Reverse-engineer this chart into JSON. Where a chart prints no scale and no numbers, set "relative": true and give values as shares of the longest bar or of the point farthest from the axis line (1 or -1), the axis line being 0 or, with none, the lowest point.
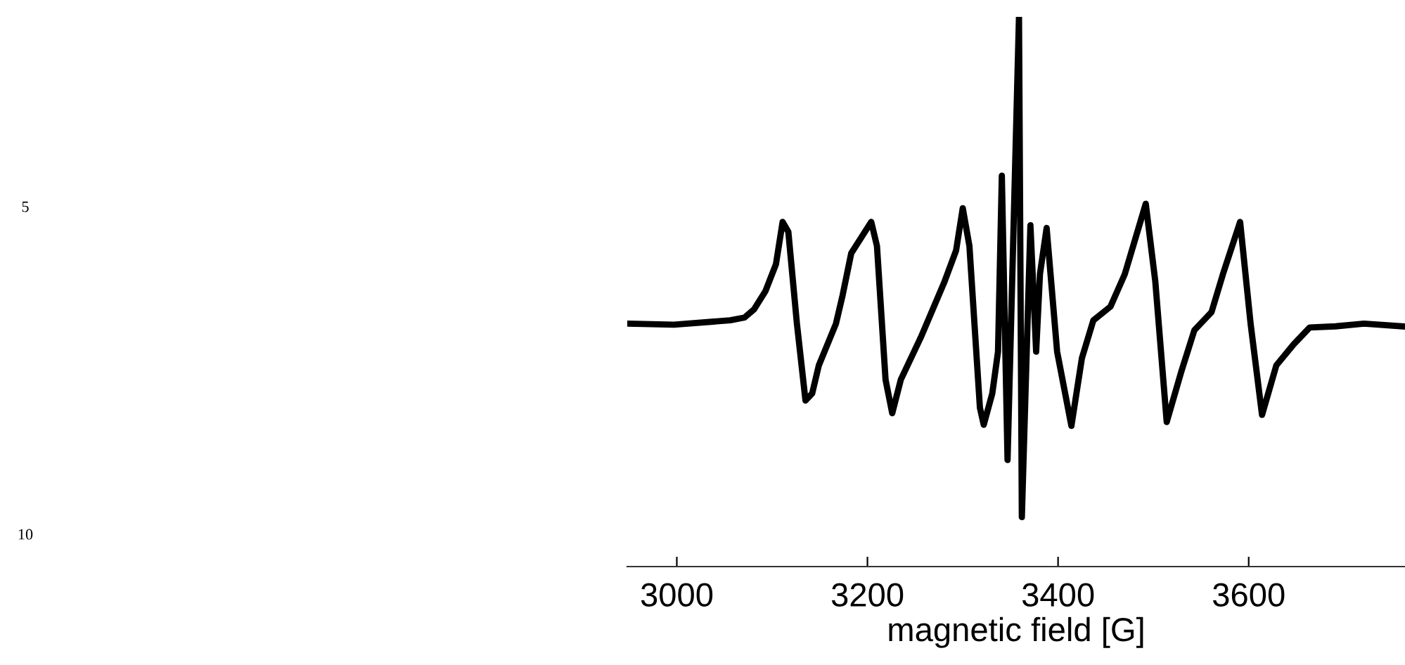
{
  "chart_data": {
    "type": "line",
    "relative": true,
    "xlabel": "magnetic field [G]",
    "xlim": [
      2948,
      3764
    ],
    "xticks": [
      3000,
      3200,
      3400,
      3600
    ],
    "tick_labels": "x",
    "grid": false,
    "legend": false,
    "annotations": [
      "5",
      "10"
    ],
    "series": [
      {
        "color": "#000000",
        "x": [
          2949,
          2997,
          3056,
          3071,
          3081,
          3093,
          3104,
          3111,
          3117,
          3126,
          3135,
          3142,
          3149,
          3167,
          3174,
          3183,
          3204,
          3210,
          3219,
          3226,
          3235,
          3256,
          3281,
          3293,
          3300,
          3307,
          3318,
          3322,
          3331,
          3337,
          3341,
          3347,
          3359,
          3362,
          3371,
          3377,
          3381,
          3388,
          3399,
          3414,
          3425,
          3437,
          3455,
          3470,
          3492,
          3502,
          3514,
          3529,
          3543,
          3561,
          3573,
          3591,
          3602,
          3614,
          3629,
          3647,
          3664,
          3691,
          3721,
          3762
        ],
        "values": [
          0.442,
          0.44,
          0.448,
          0.453,
          0.468,
          0.501,
          0.55,
          0.627,
          0.609,
          0.442,
          0.302,
          0.315,
          0.366,
          0.442,
          0.494,
          0.57,
          0.627,
          0.583,
          0.34,
          0.279,
          0.34,
          0.417,
          0.519,
          0.575,
          0.652,
          0.583,
          0.289,
          0.258,
          0.315,
          0.391,
          0.711,
          0.194,
          1,
          0.09,
          0.621,
          0.391,
          0.532,
          0.616,
          0.391,
          0.256,
          0.379,
          0.448,
          0.473,
          0.532,
          0.66,
          0.519,
          0.263,
          0.353,
          0.43,
          0.463,
          0.532,
          0.627,
          0.442,
          0.276,
          0.366,
          0.404,
          0.435,
          0.437,
          0.442,
          0.437
        ]
      }
    ]
  }
}
